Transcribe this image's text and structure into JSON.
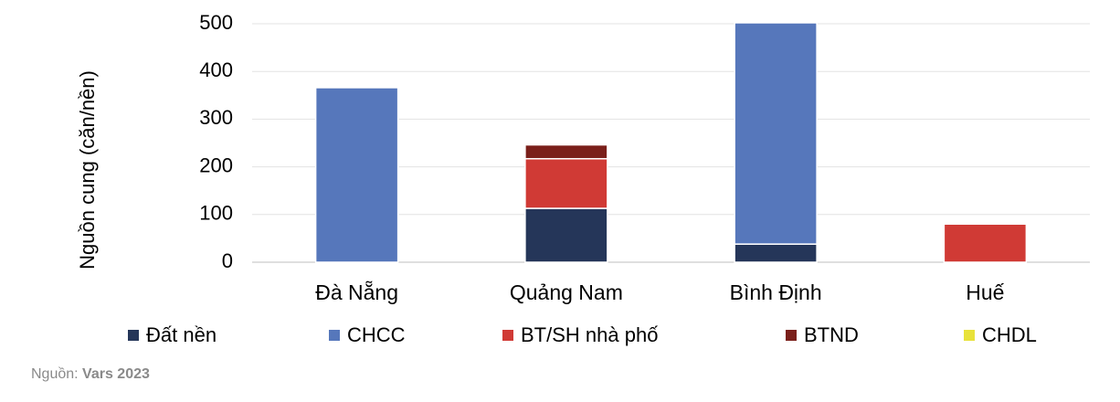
{
  "chart_data": {
    "type": "stacked_bar",
    "y_label": "Nguồn cung (căn/nền)",
    "categories": [
      "Đà Nẵng",
      "Quảng Nam",
      "Bình Định",
      "Huế"
    ],
    "series": [
      {
        "name": "Đất nền",
        "color": "#253659",
        "values": [
          0,
          113,
          38,
          0
        ]
      },
      {
        "name": "CHCC",
        "color": "#5677bb",
        "values": [
          366,
          0,
          464,
          0
        ]
      },
      {
        "name": "BT/SH nhà phố",
        "color": "#d03a35",
        "values": [
          0,
          104,
          0,
          80
        ]
      },
      {
        "name": "BTND",
        "color": "#7a1f1a",
        "values": [
          0,
          29,
          0,
          0
        ]
      },
      {
        "name": "CHDL",
        "color": "#e8e23a",
        "values": [
          0,
          0,
          0,
          0
        ]
      }
    ],
    "ylim": [
      0,
      500
    ],
    "yticks": [
      0,
      100,
      200,
      300,
      400,
      500
    ],
    "grid": true,
    "source_label": "Nguồn:",
    "source": "Vars 2023"
  }
}
